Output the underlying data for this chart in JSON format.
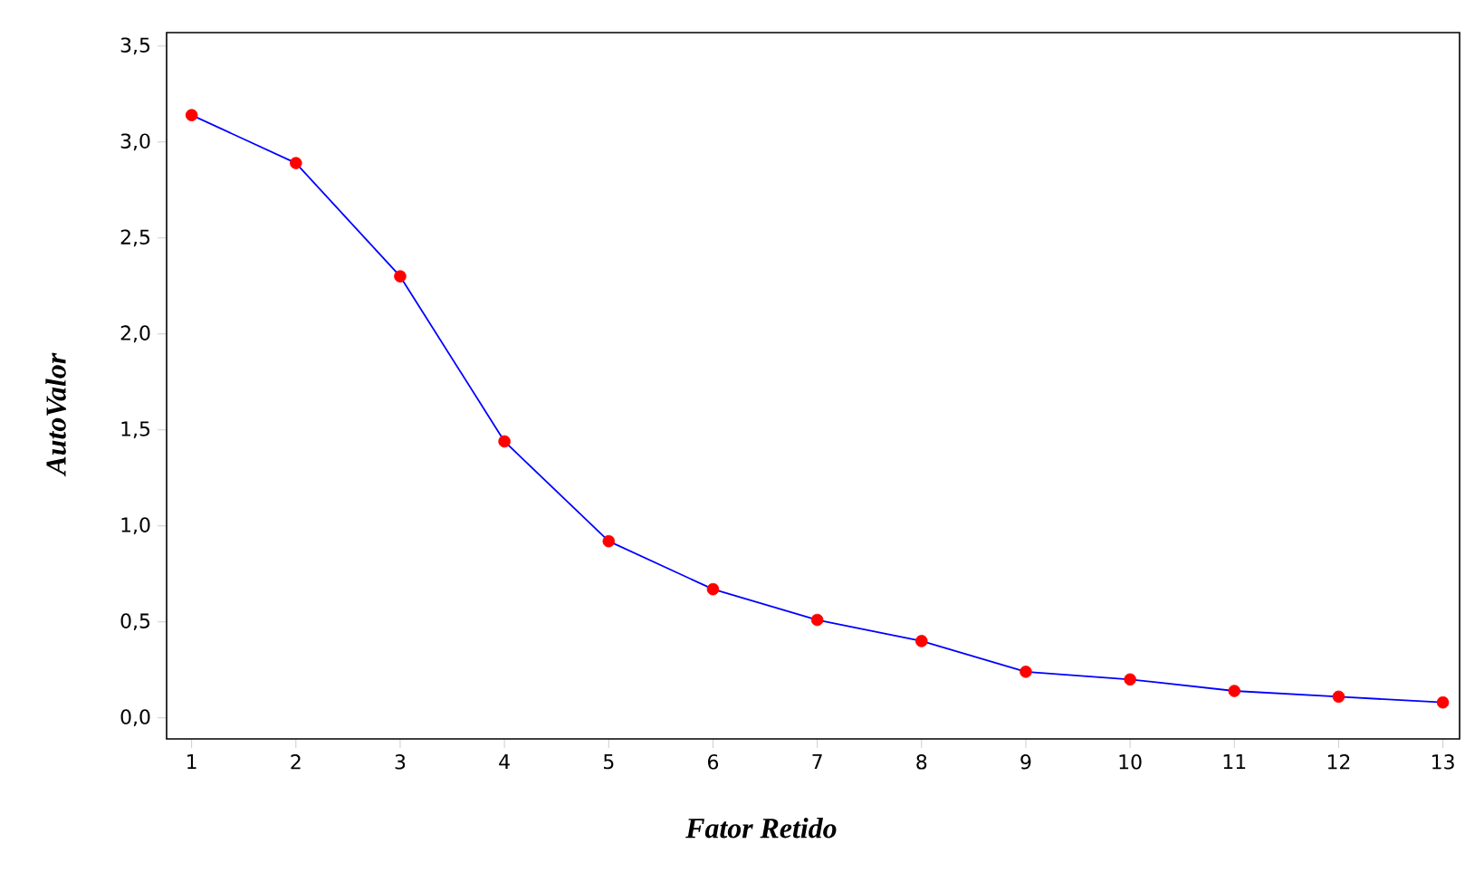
{
  "chart_data": {
    "type": "line",
    "xlabel": "Fator Retido",
    "ylabel": "AutoValor",
    "x": [
      1,
      2,
      3,
      4,
      5,
      6,
      7,
      8,
      9,
      10,
      11,
      12,
      13
    ],
    "series": [
      {
        "color": "#0000ff",
        "colors": [
          "#ff0000",
          "#ff0000",
          "#ff0000",
          "#ff0000",
          "#ff0000",
          "#ff0000",
          "#ff0000",
          "#ff0000",
          "#ff0000",
          "#ff0000",
          "#ff0000",
          "#ff0000",
          "#ff0000"
        ],
        "values": [
          3.14,
          2.89,
          2.3,
          1.44,
          0.92,
          0.67,
          0.51,
          0.4,
          0.24,
          0.2,
          0.14,
          0.11,
          0.08
        ]
      }
    ],
    "xlim": [
      0.76,
      13.16
    ],
    "ylim": [
      -0.11,
      3.57
    ],
    "xticks": [
      1,
      2,
      3,
      4,
      5,
      6,
      7,
      8,
      9,
      10,
      11,
      12,
      13
    ],
    "yticks": [
      {
        "value": 0,
        "label": "0,0"
      },
      {
        "value": 0.5,
        "label": "0,5"
      },
      {
        "value": 1,
        "label": "1,0"
      },
      {
        "value": 1.5,
        "label": "1,5"
      },
      {
        "value": 2,
        "label": "2,0"
      },
      {
        "value": 2.5,
        "label": "2,5"
      },
      {
        "value": 3,
        "label": "3,0"
      },
      {
        "value": 3.5,
        "label": "3,5"
      }
    ],
    "marker": "circle",
    "line_style": "solid"
  }
}
